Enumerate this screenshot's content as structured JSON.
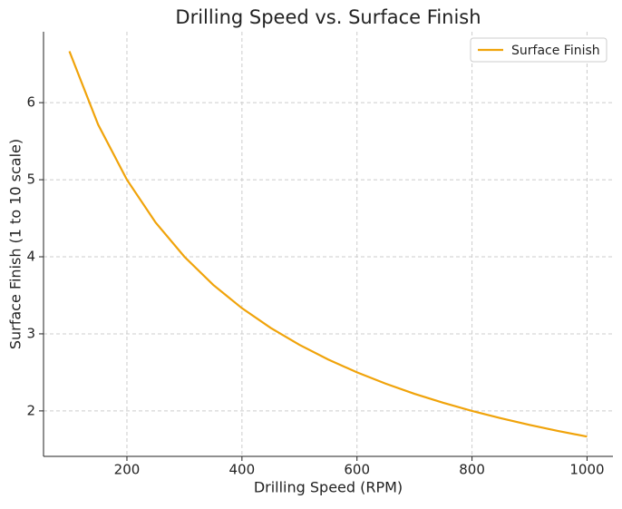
{
  "chart_data": {
    "type": "line",
    "title": "Drilling Speed vs. Surface Finish",
    "xlabel": "Drilling Speed (RPM)",
    "ylabel": "Surface Finish (1 to 10 scale)",
    "x": [
      100,
      150,
      200,
      250,
      300,
      350,
      400,
      450,
      500,
      550,
      600,
      650,
      700,
      750,
      800,
      850,
      900,
      950,
      1000
    ],
    "series": [
      {
        "name": "Surface Finish",
        "color": "#f0a30a",
        "values": [
          6.667,
          5.714,
          5,
          4.444,
          4,
          3.636,
          3.333,
          3.077,
          2.857,
          2.667,
          2.5,
          2.353,
          2.222,
          2.105,
          2,
          1.905,
          1.818,
          1.739,
          1.667
        ]
      }
    ],
    "xlim": [
      55,
      1045
    ],
    "ylim": [
      1.41,
      6.92
    ],
    "xticks": [
      200,
      400,
      600,
      800,
      1000
    ],
    "yticks": [
      2,
      3,
      4,
      5,
      6
    ],
    "grid": true,
    "legend": "upper right"
  }
}
